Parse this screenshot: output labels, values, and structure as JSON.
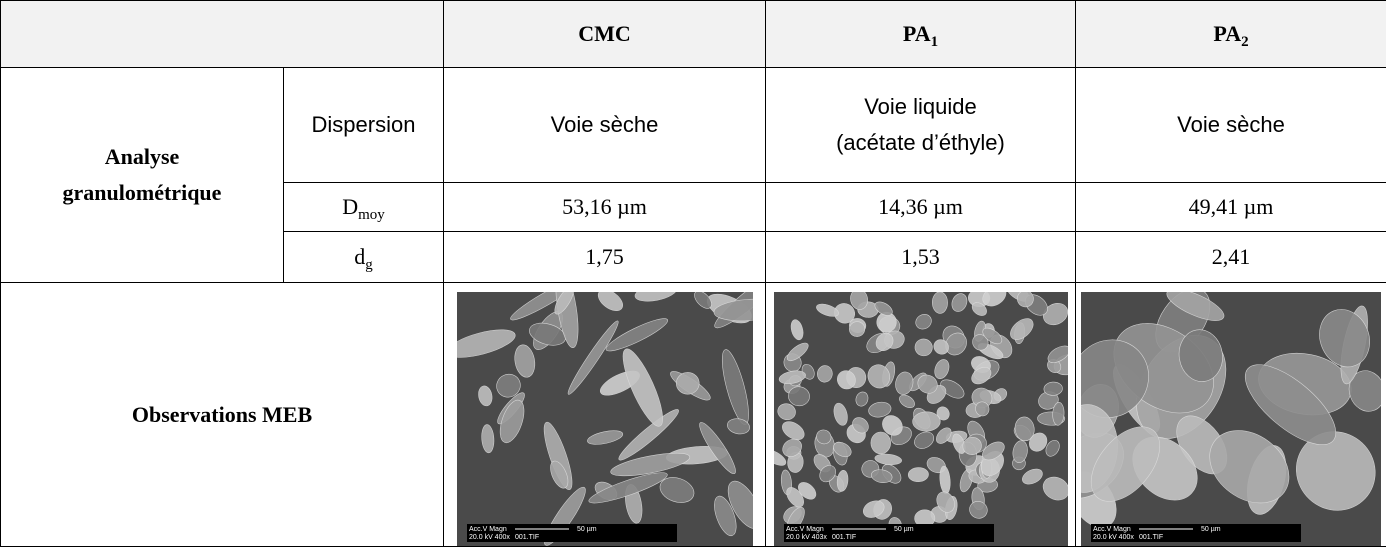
{
  "table": {
    "columns": [
      {
        "text": "CMC"
      },
      {
        "text": "PA",
        "sub": "1"
      },
      {
        "text": "PA",
        "sub": "2"
      }
    ],
    "group": [
      "Analyse",
      "granulométrique"
    ],
    "dispersion": {
      "label": "Dispersion",
      "values": [
        [
          "Voie sèche"
        ],
        [
          "Voie liquide",
          "(acétate d’éthyle)"
        ],
        [
          "Voie sèche"
        ]
      ]
    },
    "dmoy": {
      "label": {
        "text": "D",
        "sub": "moy"
      },
      "values": [
        "53,16 µm",
        "14,36 µm",
        "49,41 µm"
      ]
    },
    "dg": {
      "label": {
        "text": "d",
        "sub": "g"
      },
      "values": [
        "1,75",
        "1,53",
        "2,41"
      ]
    },
    "meb": {
      "label": "Observations MEB",
      "images": [
        {
          "line1": "Acc.V  Magn",
          "line2": "20.0 kV 400x",
          "file": "001.TIF",
          "scale": "50 µm"
        },
        {
          "line1": "Acc.V  Magn",
          "line2": "20.0 kV 403x",
          "file": "001.TIF",
          "scale": "50 µm"
        },
        {
          "line1": "Acc.V  Magn",
          "line2": "20.0 kV 400x",
          "file": "001.TIF",
          "scale": "50 µm"
        }
      ]
    }
  }
}
